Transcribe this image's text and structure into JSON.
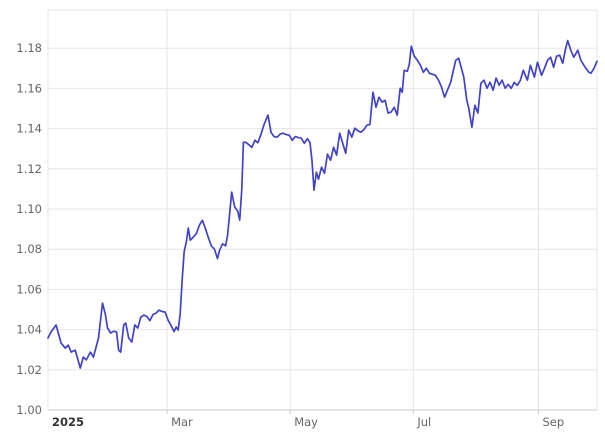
{
  "chart_data": {
    "type": "line",
    "description": "Currency exchange rate line chart, EUR/USD style, year 2025 Jan through late Sep",
    "grid": true,
    "legend": false,
    "x_axis": {
      "unit": "days since Jan 1, 2025",
      "range": [
        0,
        272
      ],
      "ticks": [
        {
          "label": "2025",
          "day": 0,
          "bold": true
        },
        {
          "label": "Mar",
          "day": 59,
          "bold": false
        },
        {
          "label": "May",
          "day": 120,
          "bold": false
        },
        {
          "label": "Jul",
          "day": 181,
          "bold": false
        },
        {
          "label": "Sep",
          "day": 243,
          "bold": false
        }
      ]
    },
    "y_axis": {
      "range": [
        1.0,
        1.199
      ],
      "tick_step": 0.02,
      "tick_labels": [
        "1.00",
        "1.02",
        "1.04",
        "1.06",
        "1.08",
        "1.10",
        "1.12",
        "1.14",
        "1.16",
        "1.18"
      ],
      "tick_values": [
        1.0,
        1.02,
        1.04,
        1.06,
        1.08,
        1.1,
        1.12,
        1.14,
        1.16,
        1.18
      ]
    },
    "series": [
      {
        "name": "exchange-rate",
        "color": "#4242c8",
        "points": [
          [
            0,
            1.0358
          ],
          [
            1.5,
            1.0388
          ],
          [
            4,
            1.0423
          ],
          [
            6.5,
            1.0333
          ],
          [
            8.5,
            1.0308
          ],
          [
            10,
            1.0323
          ],
          [
            11.5,
            1.0288
          ],
          [
            13.5,
            1.0298
          ],
          [
            16,
            1.0209
          ],
          [
            17.5,
            1.0263
          ],
          [
            19,
            1.0249
          ],
          [
            21,
            1.0288
          ],
          [
            22.5,
            1.0263
          ],
          [
            25,
            1.0358
          ],
          [
            27,
            1.0532
          ],
          [
            28.5,
            1.0472
          ],
          [
            29.5,
            1.0408
          ],
          [
            31,
            1.0383
          ],
          [
            32.5,
            1.0392
          ],
          [
            34,
            1.0388
          ],
          [
            35,
            1.0298
          ],
          [
            36,
            1.0288
          ],
          [
            37.5,
            1.0423
          ],
          [
            38.5,
            1.0433
          ],
          [
            40,
            1.0358
          ],
          [
            41.5,
            1.0338
          ],
          [
            43,
            1.0423
          ],
          [
            44.5,
            1.0408
          ],
          [
            46,
            1.0462
          ],
          [
            47.5,
            1.0472
          ],
          [
            49,
            1.0465
          ],
          [
            50.5,
            1.0445
          ],
          [
            52,
            1.0475
          ],
          [
            53.5,
            1.0482
          ],
          [
            55,
            1.0497
          ],
          [
            56.5,
            1.049
          ],
          [
            58,
            1.0487
          ],
          [
            59.5,
            1.0447
          ],
          [
            61,
            1.042
          ],
          [
            62.5,
            1.039
          ],
          [
            63.5,
            1.0413
          ],
          [
            64.5,
            1.0398
          ],
          [
            65.5,
            1.048
          ],
          [
            66.5,
            1.065
          ],
          [
            67.5,
            1.079
          ],
          [
            68.5,
            1.0835
          ],
          [
            69.5,
            1.0905
          ],
          [
            70.5,
            1.0845
          ],
          [
            72,
            1.086
          ],
          [
            73.5,
            1.0878
          ],
          [
            75,
            1.092
          ],
          [
            76.5,
            1.0944
          ],
          [
            78,
            1.0903
          ],
          [
            79.5,
            1.0855
          ],
          [
            81,
            1.0815
          ],
          [
            82.5,
            1.08
          ],
          [
            84,
            1.0753
          ],
          [
            85,
            1.0795
          ],
          [
            86.5,
            1.0827
          ],
          [
            88,
            1.0817
          ],
          [
            89,
            1.087
          ],
          [
            90,
            1.098
          ],
          [
            91,
            1.1084
          ],
          [
            92.5,
            1.101
          ],
          [
            94,
            1.099
          ],
          [
            95,
            1.0945
          ],
          [
            96,
            1.11
          ],
          [
            96.8,
            1.1332
          ],
          [
            98,
            1.1332
          ],
          [
            99.5,
            1.132
          ],
          [
            101,
            1.1307
          ],
          [
            102.5,
            1.1342
          ],
          [
            104,
            1.133
          ],
          [
            105.5,
            1.137
          ],
          [
            107,
            1.142
          ],
          [
            109,
            1.1467
          ],
          [
            110.5,
            1.1382
          ],
          [
            112,
            1.136
          ],
          [
            113.5,
            1.1357
          ],
          [
            115,
            1.1372
          ],
          [
            116.5,
            1.1377
          ],
          [
            118,
            1.137
          ],
          [
            119.5,
            1.1367
          ],
          [
            121,
            1.1342
          ],
          [
            122.5,
            1.136
          ],
          [
            124,
            1.1355
          ],
          [
            125.5,
            1.1352
          ],
          [
            127,
            1.1327
          ],
          [
            128.5,
            1.135
          ],
          [
            129.8,
            1.133
          ],
          [
            130.8,
            1.124
          ],
          [
            131.8,
            1.1094
          ],
          [
            133,
            1.1183
          ],
          [
            134,
            1.1148
          ],
          [
            135.5,
            1.1208
          ],
          [
            137,
            1.1178
          ],
          [
            138.5,
            1.1273
          ],
          [
            140,
            1.1243
          ],
          [
            141.5,
            1.1307
          ],
          [
            143,
            1.1268
          ],
          [
            144.5,
            1.1377
          ],
          [
            146,
            1.1327
          ],
          [
            147.5,
            1.1277
          ],
          [
            149,
            1.1392
          ],
          [
            150.5,
            1.1357
          ],
          [
            152,
            1.1402
          ],
          [
            153.5,
            1.139
          ],
          [
            155,
            1.1382
          ],
          [
            156.5,
            1.1395
          ],
          [
            158,
            1.1417
          ],
          [
            159.5,
            1.142
          ],
          [
            161,
            1.1581
          ],
          [
            162.5,
            1.1506
          ],
          [
            164,
            1.1556
          ],
          [
            165.5,
            1.1532
          ],
          [
            167,
            1.1541
          ],
          [
            168.5,
            1.1477
          ],
          [
            170,
            1.1482
          ],
          [
            171.5,
            1.1506
          ],
          [
            173,
            1.1467
          ],
          [
            174.5,
            1.1601
          ],
          [
            175.5,
            1.1581
          ],
          [
            176.5,
            1.169
          ],
          [
            178,
            1.1685
          ],
          [
            179,
            1.172
          ],
          [
            180,
            1.181
          ],
          [
            181.5,
            1.176
          ],
          [
            183,
            1.174
          ],
          [
            184.5,
            1.1715
          ],
          [
            186,
            1.168
          ],
          [
            187.5,
            1.17
          ],
          [
            189,
            1.1675
          ],
          [
            190.5,
            1.167
          ],
          [
            192,
            1.1665
          ],
          [
            193.5,
            1.164
          ],
          [
            195,
            1.1606
          ],
          [
            196.5,
            1.1556
          ],
          [
            199.5,
            1.1631
          ],
          [
            202,
            1.174
          ],
          [
            203.5,
            1.175
          ],
          [
            206,
            1.1656
          ],
          [
            207.5,
            1.1541
          ],
          [
            208.5,
            1.1501
          ],
          [
            210,
            1.1407
          ],
          [
            211.5,
            1.1516
          ],
          [
            213,
            1.1477
          ],
          [
            214.5,
            1.1626
          ],
          [
            216,
            1.1641
          ],
          [
            217.5,
            1.1601
          ],
          [
            219,
            1.1631
          ],
          [
            220.5,
            1.1591
          ],
          [
            222,
            1.1651
          ],
          [
            223.5,
            1.1616
          ],
          [
            225,
            1.1641
          ],
          [
            226.5,
            1.1601
          ],
          [
            228,
            1.162
          ],
          [
            229.5,
            1.16
          ],
          [
            231,
            1.163
          ],
          [
            232.5,
            1.1615
          ],
          [
            234,
            1.164
          ],
          [
            235.5,
            1.169
          ],
          [
            237.5,
            1.1641
          ],
          [
            239,
            1.1715
          ],
          [
            241,
            1.1656
          ],
          [
            242.5,
            1.173
          ],
          [
            244.5,
            1.1665
          ],
          [
            246,
            1.17
          ],
          [
            247.5,
            1.174
          ],
          [
            249,
            1.1755
          ],
          [
            250.5,
            1.1705
          ],
          [
            252,
            1.176
          ],
          [
            253.5,
            1.1765
          ],
          [
            255,
            1.1725
          ],
          [
            256.5,
            1.18
          ],
          [
            257.5,
            1.1838
          ],
          [
            259,
            1.179
          ],
          [
            260.5,
            1.1755
          ],
          [
            262.5,
            1.179
          ],
          [
            264,
            1.174
          ],
          [
            265.5,
            1.1715
          ],
          [
            266.5,
            1.17
          ],
          [
            268,
            1.168
          ],
          [
            269,
            1.1675
          ],
          [
            270.5,
            1.17
          ],
          [
            272,
            1.1735
          ]
        ]
      }
    ]
  },
  "colors": {
    "line": "#4242c8",
    "grid": "#e6e6e6",
    "border": "#e6e6e6",
    "axis_line": "#c9c9c9",
    "tick": "#cccccc",
    "label": "#666666",
    "year_label": "#333333",
    "background": "#ffffff"
  }
}
